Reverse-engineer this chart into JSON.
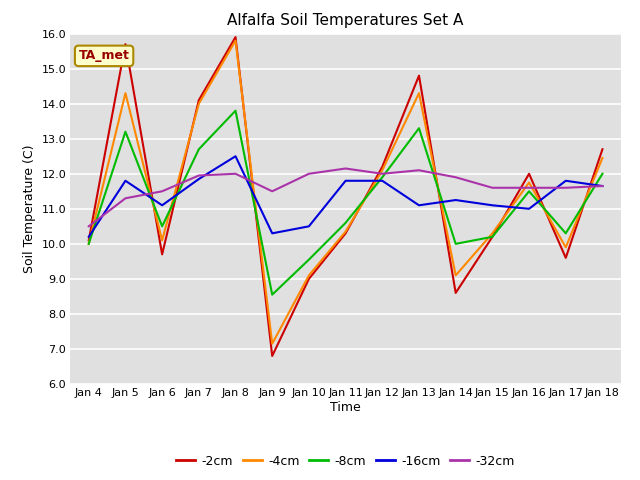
{
  "title": "Alfalfa Soil Temperatures Set A",
  "xlabel": "Time",
  "ylabel": "Soil Temperature (C)",
  "ylim": [
    6.0,
    16.0
  ],
  "yticks": [
    6.0,
    7.0,
    8.0,
    9.0,
    10.0,
    11.0,
    12.0,
    13.0,
    14.0,
    15.0,
    16.0
  ],
  "x_labels": [
    "Jan 4",
    "Jan 5",
    "Jan 6",
    "Jan 7",
    "Jan 8",
    "Jan 9",
    "Jan 10",
    "Jan 11",
    "Jan 12",
    "Jan 13",
    "Jan 14",
    "Jan 15",
    "Jan 16",
    "Jan 17",
    "Jan 18"
  ],
  "background_color": "#e0e0e0",
  "fig_facecolor": "#ffffff",
  "series": [
    {
      "label": "-2cm",
      "color": "#cc0000",
      "data": [
        10.1,
        15.7,
        9.7,
        14.1,
        15.9,
        6.8,
        9.0,
        10.3,
        12.2,
        14.8,
        8.6,
        10.2,
        12.0,
        9.6,
        12.7
      ]
    },
    {
      "label": "-4cm",
      "color": "#ff8800",
      "data": [
        10.0,
        14.3,
        10.1,
        14.0,
        15.8,
        7.15,
        9.1,
        10.35,
        12.1,
        14.3,
        9.1,
        10.3,
        11.75,
        9.9,
        12.45
      ]
    },
    {
      "label": "-8cm",
      "color": "#00bb00",
      "data": [
        10.0,
        13.2,
        10.5,
        12.7,
        13.8,
        8.55,
        9.55,
        10.6,
        11.9,
        13.3,
        10.0,
        10.2,
        11.5,
        10.3,
        12.0
      ]
    },
    {
      "label": "-16cm",
      "color": "#0000dd",
      "data": [
        10.2,
        11.8,
        11.1,
        11.85,
        12.5,
        10.3,
        10.5,
        11.8,
        11.8,
        11.1,
        11.25,
        11.1,
        11.0,
        11.8,
        11.65
      ]
    },
    {
      "label": "-32cm",
      "color": "#aa33aa",
      "data": [
        10.5,
        11.3,
        11.5,
        11.95,
        12.0,
        11.5,
        12.0,
        12.15,
        12.0,
        12.1,
        11.9,
        11.6,
        11.6,
        11.6,
        11.65
      ]
    }
  ],
  "annotation_label": "TA_met",
  "annotation_color": "#990000",
  "annotation_bg": "#ffffcc",
  "annotation_border": "#aa8800",
  "linewidth": 1.5,
  "title_fontsize": 11,
  "axis_fontsize": 9,
  "tick_fontsize": 8,
  "legend_fontsize": 9
}
